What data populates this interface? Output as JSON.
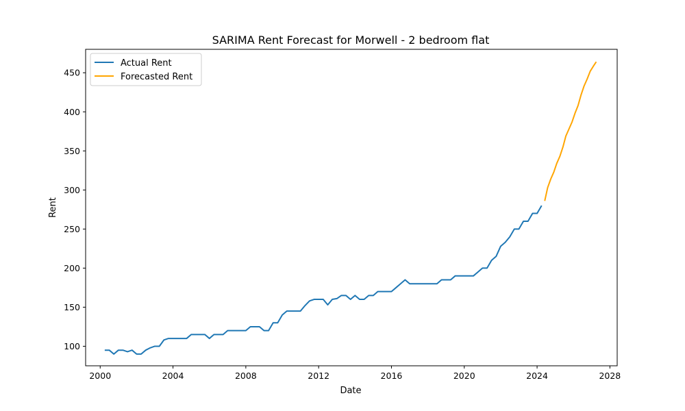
{
  "chart_data": {
    "type": "line",
    "title": "SARIMA Rent Forecast for Morwell - 2 bedroom flat",
    "xlabel": "Date",
    "ylabel": "Rent",
    "xlim": [
      1999.2,
      2028.4
    ],
    "ylim": [
      75,
      480
    ],
    "x_ticks": [
      2000,
      2004,
      2008,
      2012,
      2016,
      2020,
      2024,
      2028
    ],
    "y_ticks": [
      100,
      150,
      200,
      250,
      300,
      350,
      400,
      450
    ],
    "grid": false,
    "legend_position": "upper-left",
    "series": [
      {
        "name": "Actual Rent",
        "color": "#1f77b4",
        "x": [
          2000.25,
          2000.5,
          2000.75,
          2001.0,
          2001.25,
          2001.5,
          2001.75,
          2002.0,
          2002.25,
          2002.5,
          2002.75,
          2003.0,
          2003.25,
          2003.5,
          2003.75,
          2004.0,
          2004.25,
          2004.5,
          2004.75,
          2005.0,
          2005.25,
          2005.5,
          2005.75,
          2006.0,
          2006.25,
          2006.5,
          2006.75,
          2007.0,
          2007.25,
          2007.5,
          2007.75,
          2008.0,
          2008.25,
          2008.5,
          2008.75,
          2009.0,
          2009.25,
          2009.5,
          2009.75,
          2010.0,
          2010.25,
          2010.5,
          2010.75,
          2011.0,
          2011.25,
          2011.5,
          2011.75,
          2012.0,
          2012.25,
          2012.5,
          2012.75,
          2013.0,
          2013.25,
          2013.5,
          2013.75,
          2014.0,
          2014.25,
          2014.5,
          2014.75,
          2015.0,
          2015.25,
          2015.5,
          2015.75,
          2016.0,
          2016.25,
          2016.5,
          2016.75,
          2017.0,
          2017.25,
          2017.5,
          2017.75,
          2018.0,
          2018.25,
          2018.5,
          2018.75,
          2019.0,
          2019.25,
          2019.5,
          2019.75,
          2020.0,
          2020.25,
          2020.5,
          2020.75,
          2021.0,
          2021.25,
          2021.5,
          2021.75,
          2022.0,
          2022.25,
          2022.5,
          2022.75,
          2023.0,
          2023.25,
          2023.5,
          2023.75,
          2024.0,
          2024.25
        ],
        "values": [
          95,
          95,
          90,
          95,
          95,
          93,
          95,
          90,
          90,
          95,
          98,
          100,
          100,
          108,
          110,
          110,
          110,
          110,
          110,
          115,
          115,
          115,
          115,
          110,
          115,
          115,
          115,
          120,
          120,
          120,
          120,
          120,
          125,
          125,
          125,
          120,
          120,
          130,
          130,
          140,
          145,
          145,
          145,
          145,
          152,
          158,
          160,
          160,
          160,
          153,
          160,
          161,
          165,
          165,
          160,
          165,
          160,
          160,
          165,
          165,
          170,
          170,
          170,
          170,
          175,
          180,
          185,
          180,
          180,
          180,
          180,
          180,
          180,
          180,
          185,
          185,
          185,
          190,
          190,
          190,
          190,
          190,
          195,
          200,
          200,
          210,
          215,
          228,
          233,
          240,
          250,
          250,
          260,
          260,
          270,
          270,
          280
        ]
      },
      {
        "name": "Forecasted Rent",
        "color": "#ffa500",
        "x": [
          2024.42,
          2024.58,
          2024.75,
          2024.92,
          2025.08,
          2025.25,
          2025.42,
          2025.58,
          2025.75,
          2025.92,
          2026.08,
          2026.25,
          2026.42,
          2026.58,
          2026.75,
          2026.92,
          2027.08,
          2027.25
        ],
        "values": [
          286,
          303,
          314,
          323,
          334,
          343,
          355,
          369,
          378,
          387,
          398,
          408,
          422,
          433,
          442,
          452,
          458,
          464
        ]
      }
    ]
  }
}
